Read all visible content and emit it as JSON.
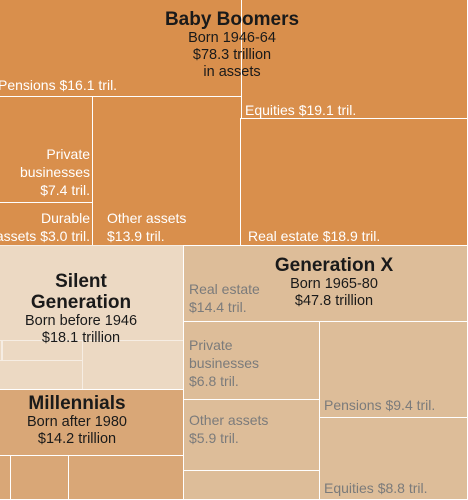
{
  "chart_data": {
    "type": "treemap",
    "units": "trillion dollars",
    "generations": [
      {
        "name": "Baby Boomers",
        "born": "Born 1946-64",
        "total_text": "$78.3 trillion",
        "total_suffix": "in assets",
        "total": 78.3,
        "color": "#d98f4c",
        "segments": [
          {
            "label": "Pensions $16.1 tril.",
            "value": 16.1
          },
          {
            "label": "Equities $19.1 tril.",
            "value": 19.1
          },
          {
            "label": "Private\nbusinesses\n$7.4 tril.",
            "value": 7.4
          },
          {
            "label": "Durable\nassets $3.0 tril.",
            "value": 3.0
          },
          {
            "label": "Other assets\n$13.9 tril.",
            "value": 13.9
          },
          {
            "label": "Real estate $18.9 tril.",
            "value": 18.9
          }
        ]
      },
      {
        "name": "Generation X",
        "born": "Born 1965-80",
        "total_text": "$47.8 trillion",
        "total": 47.8,
        "color": "#ddbd99",
        "segments": [
          {
            "label": "Real estate\n$14.4 tril.",
            "value": 14.4
          },
          {
            "label": "Private\nbusinesses\n$6.8 tril.",
            "value": 6.8
          },
          {
            "label": "Other assets\n$5.9 tril.",
            "value": 5.9
          },
          {
            "label": "Pensions $9.4 tril.",
            "value": 9.4
          },
          {
            "label": "Equities $8.8 tril.",
            "value": 8.8
          }
        ]
      },
      {
        "name": "Silent\nGeneration",
        "born": "Born before 1946",
        "total_text": "$18.1 trillion",
        "total": 18.1,
        "color": "#ecd9c3"
      },
      {
        "name": "Millennials",
        "born": "Born after 1980",
        "total_text": "$14.2 trillion",
        "total": 14.2,
        "color": "#d9a777"
      }
    ]
  }
}
